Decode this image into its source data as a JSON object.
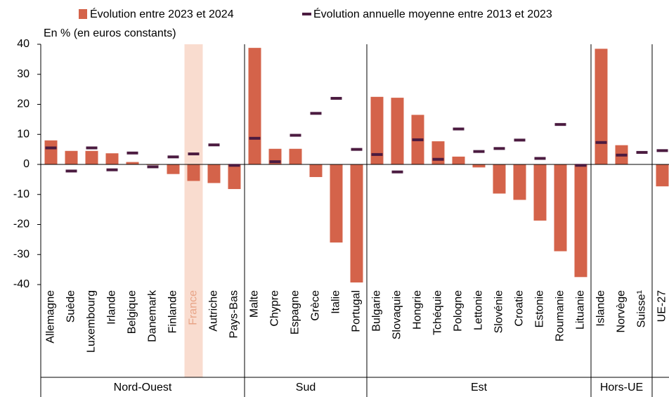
{
  "chart_data": {
    "type": "bar",
    "subtitle": "En % (en euros constants)",
    "groups": [
      {
        "label": "Nord-Ouest",
        "categories": [
          "Allemagne",
          "Suède",
          "Luxembourg",
          "Irlande",
          "Belgique",
          "Danemark",
          "Finlande",
          "France",
          "Autriche",
          "Pays-Bas"
        ]
      },
      {
        "label": "Sud",
        "categories": [
          "Malte",
          "Chypre",
          "Espagne",
          "Grèce",
          "Italie",
          "Portugal"
        ]
      },
      {
        "label": "Est",
        "categories": [
          "Bulgarie",
          "Slovaquie",
          "Hongrie",
          "Tchéquie",
          "Pologne",
          "Lettonie",
          "Slovénie",
          "Croatie",
          "Estonie",
          "Roumanie",
          "Lituanie"
        ]
      },
      {
        "label": "Hors-UE",
        "categories": [
          "Islande",
          "Norvège",
          "Suisse¹"
        ]
      },
      {
        "categories": [
          "UE-27"
        ]
      }
    ],
    "highlight": "France",
    "series": [
      {
        "name": "Évolution entre 2023 et 2024",
        "kind": "bar",
        "color": "#d4634a",
        "values": [
          8,
          4.5,
          4.5,
          3.7,
          0.8,
          -0.2,
          -3.2,
          -5.5,
          -6.2,
          -8.2,
          38.8,
          5.2,
          5.2,
          -4.2,
          -26,
          -39.3,
          22.5,
          22.2,
          16.5,
          7.7,
          2.6,
          -1,
          -9.7,
          -11.8,
          -18.7,
          -28.9,
          -37.5,
          38.5,
          6.4,
          null,
          -7.3
        ]
      },
      {
        "name": "Évolution annuelle moyenne entre 2013 et 2023",
        "kind": "dash",
        "color": "#4b1b40",
        "values": [
          5.5,
          -2.2,
          5.5,
          -1.8,
          3.8,
          -0.8,
          2.5,
          3.5,
          6.5,
          -0.3,
          8.7,
          0.9,
          9.7,
          17,
          22,
          5,
          3.3,
          -2.5,
          8.2,
          1.7,
          11.8,
          4.3,
          5.3,
          8.1,
          2,
          13.3,
          -0.3,
          7.3,
          3.1,
          4,
          4.6
        ]
      }
    ],
    "ylim": [
      -40,
      40
    ],
    "yticks": [
      40,
      30,
      20,
      10,
      0,
      -10,
      -20,
      -30,
      -40
    ]
  }
}
